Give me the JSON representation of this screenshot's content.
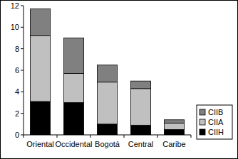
{
  "chart_data": {
    "type": "bar",
    "stacked": true,
    "legend": "right",
    "categories": [
      "Oriental",
      "Occidental",
      "Bogotá",
      "Central",
      "Caribe"
    ],
    "series": [
      {
        "name": "CIIH",
        "color": "#000000",
        "values": [
          3.1,
          3.0,
          1.0,
          0.9,
          0.5
        ]
      },
      {
        "name": "CIIA",
        "color": "#c0c0c0",
        "values": [
          6.1,
          2.7,
          3.9,
          3.4,
          0.6
        ]
      },
      {
        "name": "CIIB",
        "color": "#808080",
        "values": [
          2.5,
          3.3,
          1.6,
          0.7,
          0.3
        ]
      }
    ],
    "ylim": [
      0,
      12
    ],
    "yticks": [
      0,
      2,
      4,
      6,
      8,
      10,
      12
    ],
    "grid": false
  }
}
